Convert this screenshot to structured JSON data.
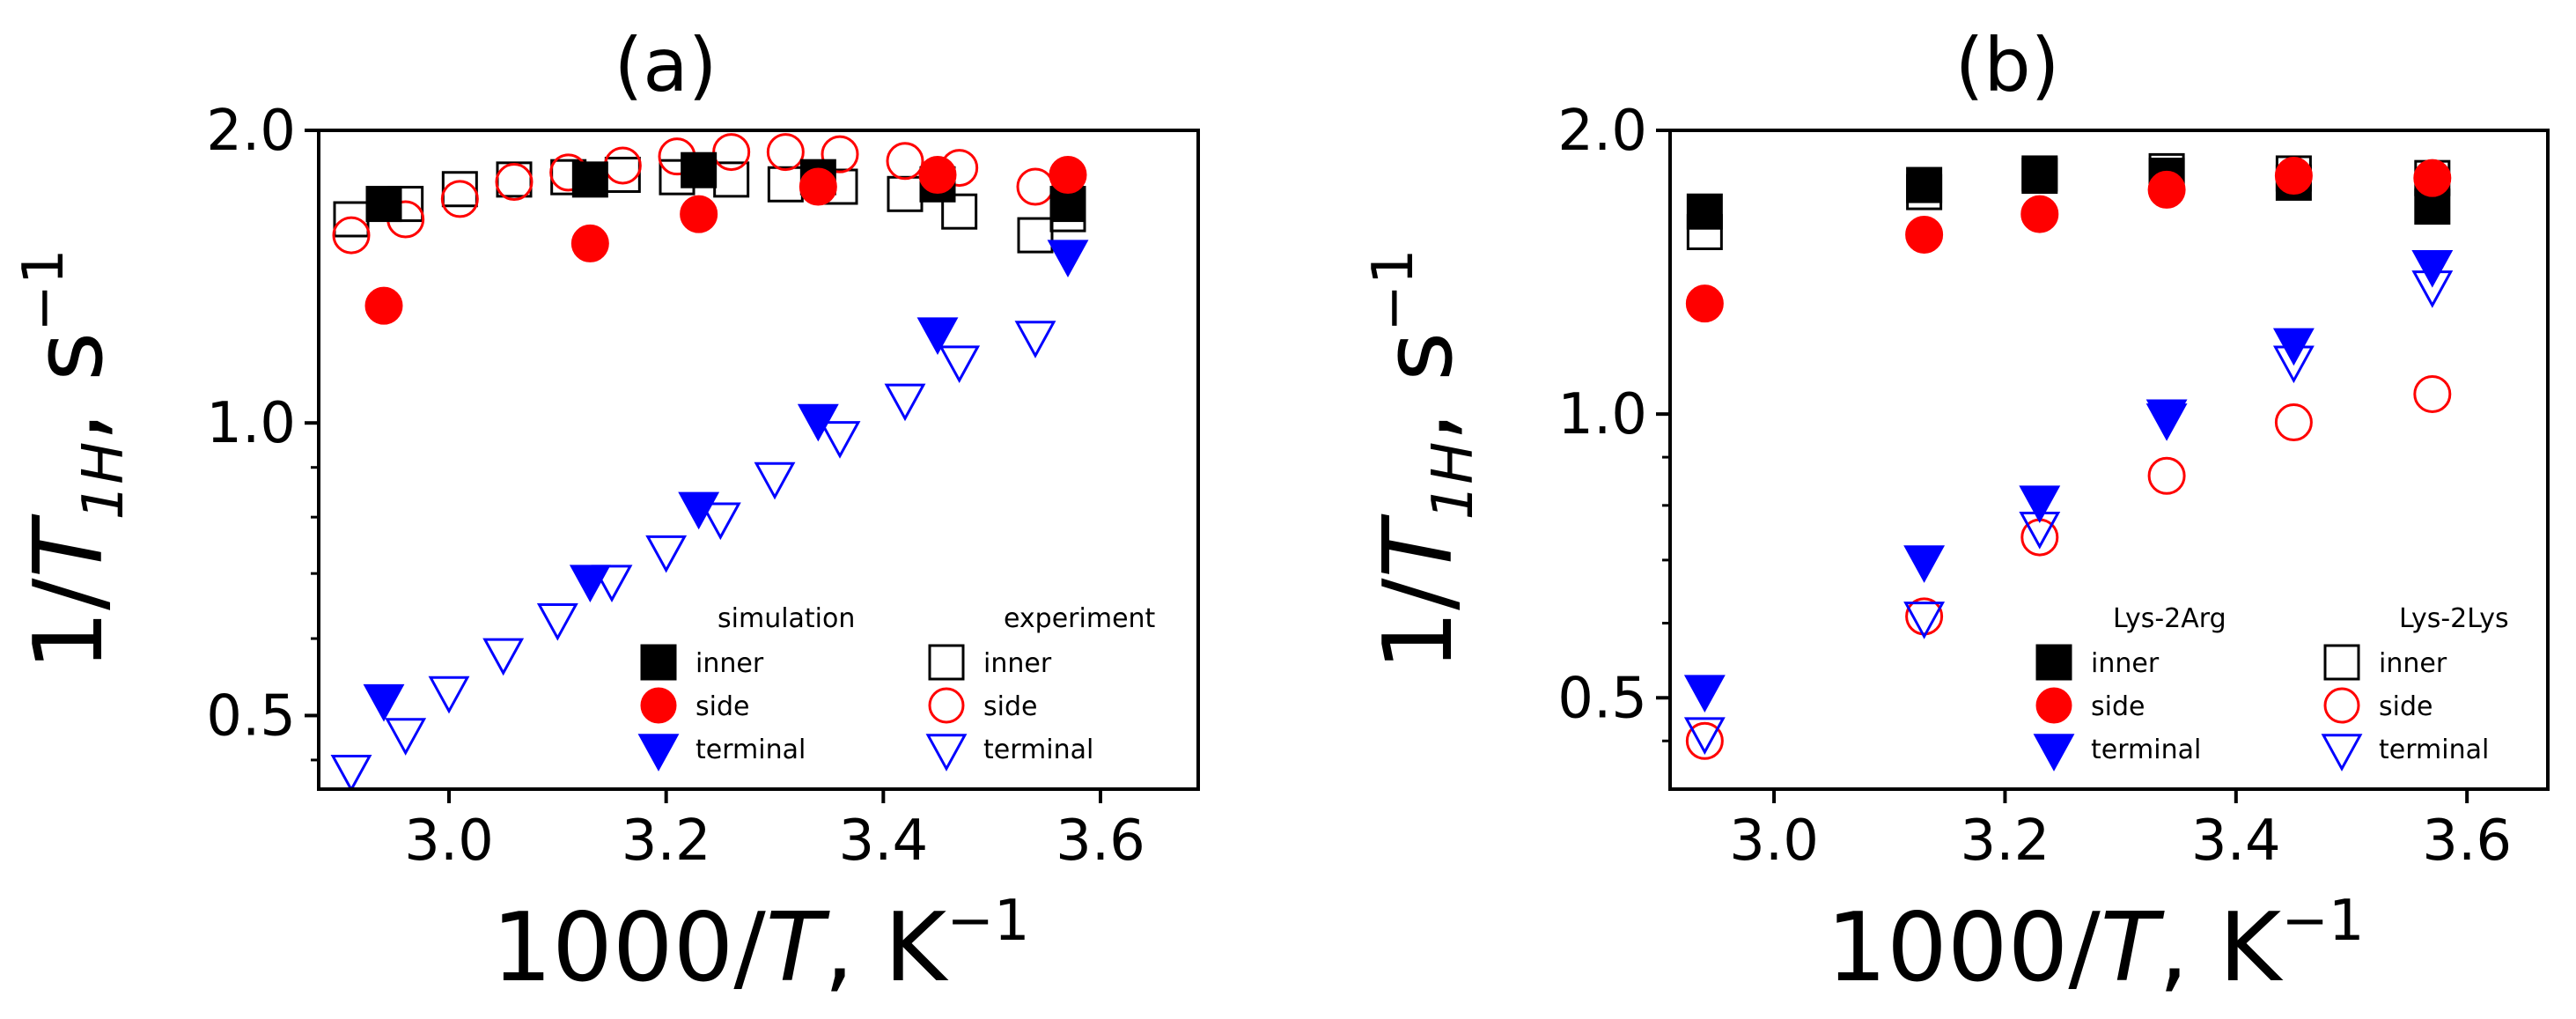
{
  "chart_data": [
    {
      "type": "scatter",
      "title": "(a)",
      "xlabel": "1000/T, K⁻¹",
      "ylabel": "1/T1H, s⁻¹",
      "y_scale": "log",
      "xlim": [
        2.88,
        3.69
      ],
      "ylim": [
        0.42,
        2.0
      ],
      "xticks": [
        "3.0",
        "3.2",
        "3.4",
        "3.6"
      ],
      "yticks": [
        "0.5",
        "1.0",
        "2.0"
      ],
      "legend_position": "bottom-right",
      "legend_headers": [
        "simulation",
        "experiment"
      ],
      "series": [
        {
          "name": "simulation inner",
          "marker": "square",
          "filled": true,
          "color": "#000000",
          "x": [
            2.94,
            3.13,
            3.23,
            3.34,
            3.45,
            3.57
          ],
          "y": [
            1.68,
            1.78,
            1.82,
            1.79,
            1.76,
            1.68
          ]
        },
        {
          "name": "simulation side",
          "marker": "circle",
          "filled": true,
          "color": "#ff0000",
          "x": [
            2.94,
            3.13,
            3.23,
            3.34,
            3.45,
            3.57
          ],
          "y": [
            1.32,
            1.53,
            1.64,
            1.75,
            1.8,
            1.8
          ]
        },
        {
          "name": "simulation terminal",
          "marker": "triangle-down",
          "filled": true,
          "color": "#0000ff",
          "x": [
            2.94,
            3.13,
            3.23,
            3.34,
            3.45,
            3.57
          ],
          "y": [
            0.52,
            0.69,
            0.82,
            1.01,
            1.24,
            1.49
          ]
        },
        {
          "name": "experiment inner",
          "marker": "square",
          "filled": false,
          "color": "#000000",
          "x": [
            2.91,
            2.96,
            3.01,
            3.06,
            3.11,
            3.16,
            3.21,
            3.26,
            3.31,
            3.36,
            3.42,
            3.47,
            3.54,
            3.57
          ],
          "y": [
            1.62,
            1.68,
            1.74,
            1.78,
            1.79,
            1.8,
            1.79,
            1.78,
            1.76,
            1.75,
            1.72,
            1.65,
            1.56,
            1.64
          ]
        },
        {
          "name": "experiment side",
          "marker": "circle",
          "filled": false,
          "color": "#ff0000",
          "x": [
            2.91,
            2.96,
            3.01,
            3.06,
            3.11,
            3.16,
            3.21,
            3.26,
            3.31,
            3.36,
            3.42,
            3.47,
            3.54
          ],
          "y": [
            1.56,
            1.62,
            1.7,
            1.77,
            1.81,
            1.84,
            1.88,
            1.9,
            1.9,
            1.89,
            1.86,
            1.83,
            1.75
          ]
        },
        {
          "name": "experiment terminal",
          "marker": "triangle-down",
          "filled": false,
          "color": "#0000ff",
          "x": [
            2.91,
            2.96,
            3.0,
            3.05,
            3.1,
            3.15,
            3.2,
            3.25,
            3.3,
            3.36,
            3.42,
            3.47,
            3.54
          ],
          "y": [
            0.44,
            0.48,
            0.53,
            0.58,
            0.63,
            0.69,
            0.74,
            0.8,
            0.88,
            0.97,
            1.06,
            1.16,
            1.23
          ]
        }
      ]
    },
    {
      "type": "scatter",
      "title": "(b)",
      "xlabel": "1000/T, K⁻¹",
      "ylabel": "1/T1H, s⁻¹",
      "y_scale": "log",
      "xlim": [
        2.91,
        3.67
      ],
      "ylim": [
        0.4,
        2.0
      ],
      "xticks": [
        "3.0",
        "3.2",
        "3.4",
        "3.6"
      ],
      "yticks": [
        "0.5",
        "1.0",
        "2.0"
      ],
      "legend_position": "bottom-right",
      "legend_headers": [
        "Lys-2Arg",
        "Lys-2Lys"
      ],
      "series": [
        {
          "name": "Lys-2Arg inner",
          "marker": "square",
          "filled": true,
          "color": "#000000",
          "x": [
            2.94,
            3.13,
            3.23,
            3.34,
            3.45,
            3.57
          ],
          "y": [
            1.64,
            1.75,
            1.8,
            1.79,
            1.76,
            1.66
          ]
        },
        {
          "name": "Lys-2Arg side",
          "marker": "circle",
          "filled": true,
          "color": "#ff0000",
          "x": [
            2.94,
            3.13,
            3.23,
            3.34,
            3.45,
            3.57
          ],
          "y": [
            1.31,
            1.55,
            1.63,
            1.73,
            1.79,
            1.78
          ]
        },
        {
          "name": "Lys-2Arg terminal",
          "marker": "triangle-down",
          "filled": true,
          "color": "#0000ff",
          "x": [
            2.94,
            3.13,
            3.23,
            3.34,
            3.45,
            3.57
          ],
          "y": [
            0.51,
            0.7,
            0.81,
            1.0,
            1.19,
            1.44
          ]
        },
        {
          "name": "Lys-2Lys inner",
          "marker": "square",
          "filled": false,
          "color": "#000000",
          "x": [
            2.94,
            3.13,
            3.23,
            3.34,
            3.45,
            3.57
          ],
          "y": [
            1.56,
            1.72,
            1.79,
            1.81,
            1.8,
            1.78
          ]
        },
        {
          "name": "Lys-2Lys side",
          "marker": "circle",
          "filled": false,
          "color": "#ff0000",
          "x": [
            2.94,
            3.13,
            3.23,
            3.34,
            3.45,
            3.57
          ],
          "y": [
            0.45,
            0.61,
            0.74,
            0.86,
            0.98,
            1.05
          ]
        },
        {
          "name": "Lys-2Lys terminal",
          "marker": "triangle-down",
          "filled": false,
          "color": "#0000ff",
          "x": [
            2.94,
            3.13,
            3.23,
            3.34,
            3.45,
            3.57
          ],
          "y": [
            0.46,
            0.61,
            0.76,
            0.99,
            1.14,
            1.37
          ]
        }
      ]
    }
  ]
}
